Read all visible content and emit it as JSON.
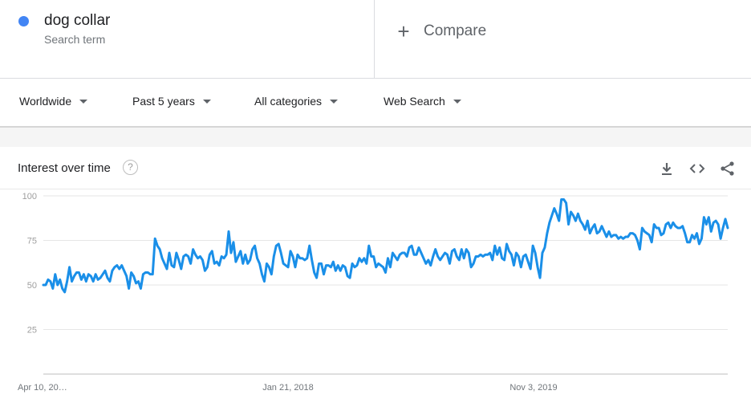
{
  "term": {
    "name": "dog collar",
    "subtitle": "Search term",
    "color": "#4285f4"
  },
  "compare": {
    "plus": "+",
    "label": "Compare"
  },
  "filters": [
    {
      "label": "Worldwide"
    },
    {
      "label": "Past 5 years"
    },
    {
      "label": "All categories"
    },
    {
      "label": "Web Search"
    }
  ],
  "card": {
    "title": "Interest over time",
    "help": "?",
    "icons": [
      "download-icon",
      "embed-icon",
      "share-icon"
    ]
  },
  "chart_data": {
    "type": "line",
    "title": "",
    "ylim": [
      0,
      100
    ],
    "y_ticks": [
      25,
      50,
      75,
      100
    ],
    "x_tick_labels": [
      "Apr 10, 20…",
      "Jan 21, 2018",
      "Nov 3, 2019"
    ],
    "grid": true,
    "line_color": "#1a8fe8",
    "series": [
      {
        "values": [
          50,
          50,
          53,
          52,
          48,
          56,
          50,
          53,
          48,
          46,
          52,
          60,
          52,
          55,
          57,
          57,
          53,
          56,
          52,
          56,
          55,
          52,
          56,
          53,
          54,
          56,
          58,
          54,
          52,
          58,
          60,
          61,
          59,
          61,
          58,
          55,
          48,
          57,
          55,
          51,
          52,
          48,
          56,
          57,
          57,
          56,
          56,
          76,
          72,
          70,
          65,
          62,
          59,
          68,
          61,
          60,
          68,
          64,
          59,
          66,
          67,
          66,
          62,
          70,
          67,
          65,
          66,
          64,
          58,
          60,
          67,
          69,
          62,
          63,
          61,
          66,
          65,
          67,
          80,
          68,
          74,
          63,
          66,
          69,
          62,
          67,
          62,
          64,
          70,
          72,
          65,
          62,
          56,
          52,
          62,
          60,
          56,
          66,
          72,
          73,
          68,
          62,
          61,
          60,
          69,
          66,
          60,
          67,
          65,
          65,
          64,
          65,
          72,
          64,
          57,
          54,
          62,
          62,
          56,
          61,
          61,
          60,
          63,
          58,
          61,
          58,
          61,
          60,
          55,
          54,
          62,
          60,
          61,
          65,
          63,
          65,
          62,
          72,
          66,
          66,
          60,
          62,
          61,
          60,
          57,
          65,
          60,
          68,
          66,
          64,
          67,
          68,
          68,
          66,
          71,
          72,
          67,
          67,
          71,
          68,
          65,
          62,
          64,
          61,
          66,
          70,
          66,
          64,
          66,
          68,
          67,
          62,
          69,
          70,
          66,
          64,
          70,
          65,
          70,
          68,
          60,
          62,
          66,
          66,
          67,
          66,
          67,
          67,
          68,
          64,
          72,
          67,
          71,
          65,
          64,
          73,
          69,
          67,
          61,
          68,
          66,
          60,
          66,
          67,
          63,
          59,
          72,
          68,
          60,
          54,
          68,
          71,
          79,
          85,
          89,
          93,
          90,
          86,
          98,
          98,
          96,
          84,
          91,
          89,
          86,
          90,
          86,
          84,
          81,
          86,
          79,
          82,
          84,
          79,
          80,
          83,
          80,
          77,
          80,
          77,
          78,
          78,
          76,
          77,
          76,
          77,
          77,
          79,
          79,
          78,
          75,
          70,
          82,
          80,
          79,
          78,
          74,
          84,
          82,
          82,
          78,
          79,
          84,
          85,
          82,
          85,
          83,
          82,
          82,
          83,
          79,
          74,
          74,
          78,
          76,
          79,
          73,
          76,
          88,
          84,
          88,
          80,
          85,
          86,
          84,
          76,
          82,
          87,
          82
        ]
      }
    ]
  }
}
